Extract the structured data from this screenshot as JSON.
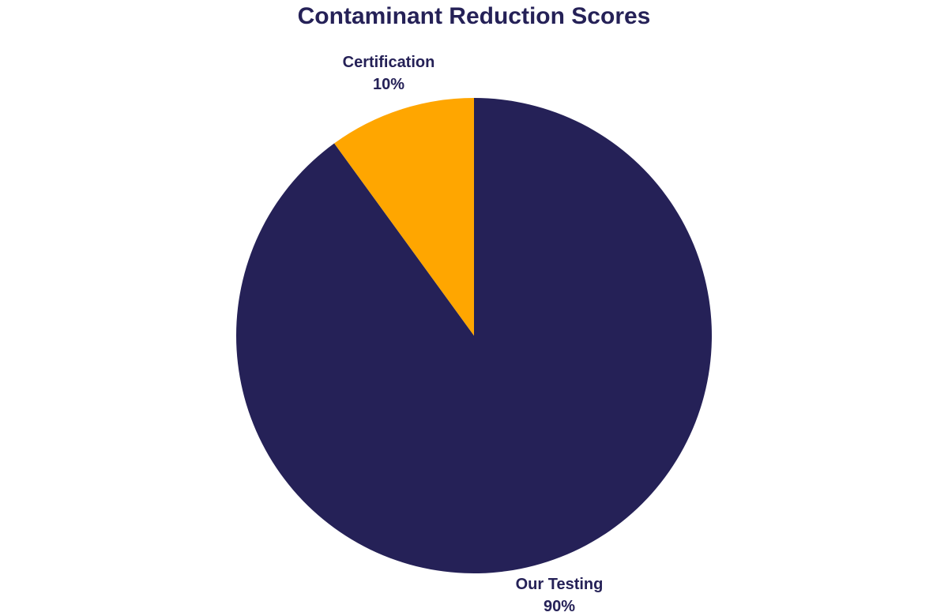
{
  "chart_data": {
    "type": "pie",
    "title": "Contaminant Reduction Scores",
    "slices": [
      {
        "label": "Our Testing",
        "value": 90,
        "value_label": "90%",
        "color": "#252157"
      },
      {
        "label": "Certification",
        "value": 10,
        "value_label": "10%",
        "color": "#FFA600"
      }
    ],
    "legend": "none",
    "label_color": "#252157",
    "title_color": "#252157"
  }
}
